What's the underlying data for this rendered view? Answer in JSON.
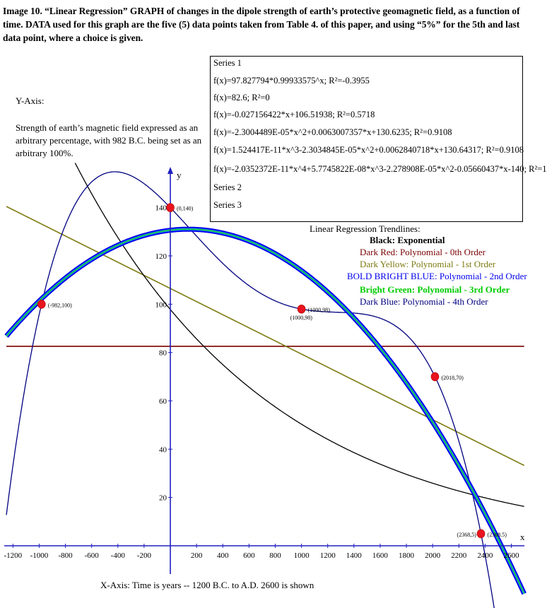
{
  "caption": "Image 10. “Linear Regression” GRAPH of changes in the dipole strength of earth’s protective geomagnetic field, as a function of time. DATA used for this graph are the five (5) data points taken from Table 4. of this paper, and using “5%” for the 5th and last data point, where a choice is given.",
  "y_axis_note": {
    "title": "Y-Axis:",
    "description": "Strength of earth’s magnetic field expressed as an arbitrary percentage, with 982 B.C. being set as an arbitrary 100%."
  },
  "x_axis_note": "X-Axis: Time is years -- 1200 B.C. to A.D. 2600 is shown",
  "legend": {
    "series": [
      "Series 1",
      "Series 2",
      "Series 3"
    ],
    "equations": [
      "f(x)=97.827794*0.99933575^x; R²=-0.3955",
      "f(x)=82.6; R²=0",
      "f(x)=-0.027156422*x+106.51938; R²=0.5718",
      "f(x)=-2.3004489E-05*x^2+0.0063007357*x+130.6235; R²=0.9108",
      "f(x)=1.524417E-11*x^3-2.3034845E-05*x^2+0.0062840718*x+130.64317; R²=0.9108",
      "f(x)=-2.0352372E-11*x^4+5.7745822E-08*x^3-2.278908E-05*x^2-0.05660437*x-140; R²=1"
    ]
  },
  "trendline_key": {
    "title": "Linear Regression Trendlines:",
    "items": [
      {
        "label": "Black: Exponential",
        "color": "#000000"
      },
      {
        "label": "Dark Red: Polynomial - 0th Order",
        "color": "#7a0000"
      },
      {
        "label": "Dark Yellow: Polynomial - 1st Order",
        "color": "#7d7a10"
      },
      {
        "label": "BOLD BRIGHT BLUE: Polynomial - 2nd Order",
        "color": "#0000ee"
      },
      {
        "label": "Bright Green: Polynomial - 3rd Order",
        "color": "#00cc00"
      },
      {
        "label": "Dark Blue: Polynomial - 4th Order",
        "color": "#000080"
      }
    ]
  },
  "colors": {
    "point": "#e8141e",
    "exponential": "#000000",
    "order0": "#7a0000",
    "order1": "#7d7a10",
    "order2": "#0000ee",
    "order2_inner": "#29a9d9",
    "order3": "#00cc00",
    "order4": "#000080",
    "axis": "#2020c0"
  },
  "chart_data": {
    "type": "scatter",
    "xlabel": "x",
    "ylabel": "y",
    "xlim": [
      -1250,
      2700
    ],
    "ylim": [
      -12,
      160
    ],
    "x_ticks": [
      -1200,
      -1000,
      -800,
      -600,
      -400,
      -200,
      200,
      400,
      600,
      800,
      1000,
      1200,
      1400,
      1600,
      1800,
      2000,
      2200,
      2400,
      2600
    ],
    "y_ticks": [
      20,
      40,
      60,
      80,
      100,
      120,
      140
    ],
    "points": [
      {
        "x": -982,
        "y": 100,
        "label": "(-982,100)"
      },
      {
        "x": 0,
        "y": 140,
        "label": "(0,140)"
      },
      {
        "x": 1000,
        "y": 98,
        "label": "(1000,98)"
      },
      {
        "x": 2018,
        "y": 70,
        "label": "(2018,70)"
      },
      {
        "x": 2368.5,
        "y": 5,
        "label": "(2368.5)"
      }
    ],
    "point_labels_extra": [
      {
        "x": 1000,
        "y": 98,
        "label": "(1000,98)"
      },
      {
        "x": 2368.5,
        "y": 5,
        "label": "(2368,5)"
      }
    ],
    "trendlines": [
      {
        "name": "Exponential",
        "kind": "exp",
        "a": 97.827794,
        "b": 0.99933575
      },
      {
        "name": "Polynomial - 0th Order",
        "kind": "poly",
        "coeffs": [
          82.6
        ]
      },
      {
        "name": "Polynomial - 1st Order",
        "kind": "poly",
        "coeffs": [
          106.51938,
          -0.027156422
        ]
      },
      {
        "name": "Polynomial - 2nd Order",
        "kind": "poly",
        "coeffs": [
          130.6235,
          0.0063007357,
          -2.3004489e-05
        ]
      },
      {
        "name": "Polynomial - 3rd Order",
        "kind": "poly",
        "coeffs": [
          130.64317,
          0.0062840718,
          -2.3034845e-05,
          1.524417e-11
        ]
      },
      {
        "name": "Polynomial - 4th Order",
        "kind": "poly4"
      }
    ]
  }
}
